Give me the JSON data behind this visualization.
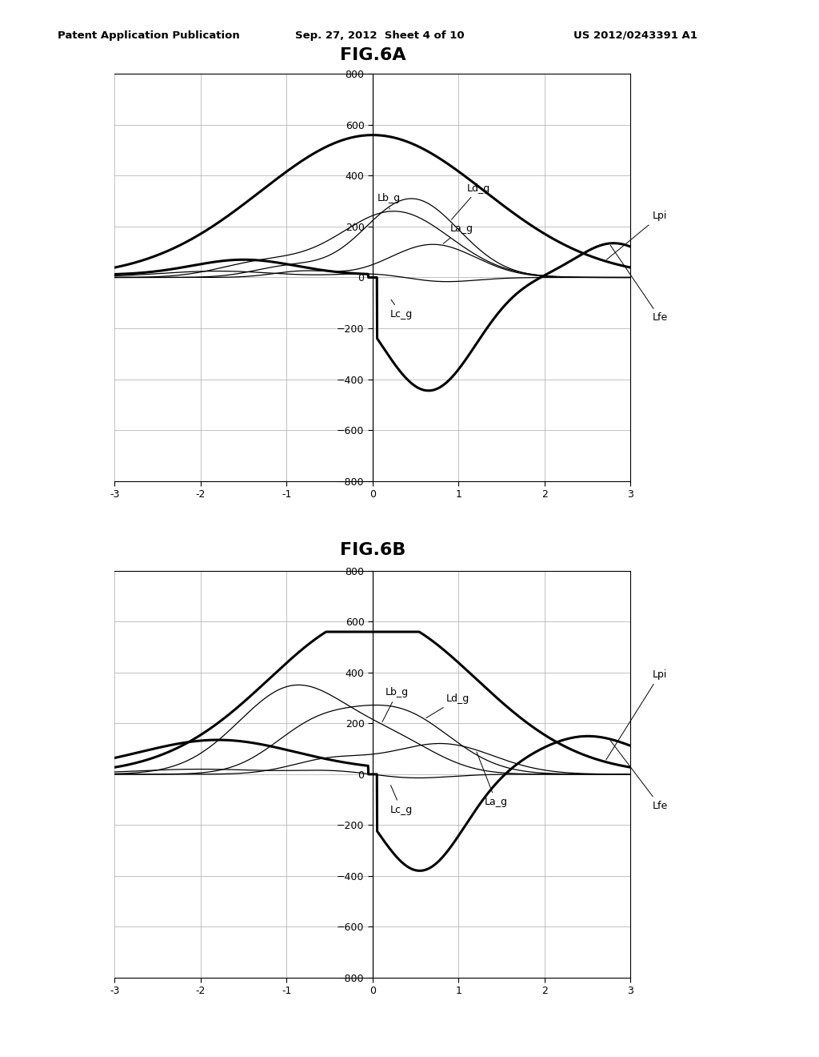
{
  "title_top": "Patent Application Publication",
  "title_date": "Sep. 27, 2012  Sheet 4 of 10",
  "title_patent": "US 2012/0243391 A1",
  "fig_a_title": "FIG.6A",
  "fig_b_title": "FIG.6B",
  "xlim": [
    -3,
    3
  ],
  "ylim": [
    -800,
    800
  ],
  "yticks": [
    -800,
    -600,
    -400,
    -200,
    0,
    200,
    400,
    600,
    800
  ],
  "xticks": [
    -3,
    -2,
    -1,
    0,
    1,
    2,
    3
  ],
  "background_color": "#ffffff",
  "grid_color": "#aaaaaa",
  "line_lw_thick": 2.2,
  "line_lw_thin": 0.9,
  "annot_fontsize": 9
}
